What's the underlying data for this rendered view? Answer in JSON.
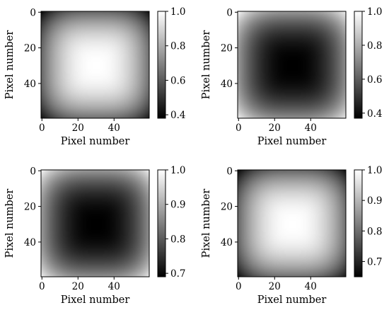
{
  "chart_data": [
    {
      "type": "heatmap",
      "colormap": "gray",
      "grid": false,
      "xlabel": "Pixel number",
      "ylabel": "Pixel number",
      "size": [
        60,
        60
      ],
      "pattern": "center-bright",
      "center": [
        30,
        30
      ],
      "vmin": 0.38,
      "vmax": 1.0,
      "center_value": 1.0,
      "corner_value": 0.38,
      "xticks": [
        "0",
        "20",
        "40"
      ],
      "yticks": [
        "0",
        "20",
        "40"
      ],
      "colorbar_ticks": [
        "0.4",
        "0.6",
        "0.8",
        "1.0"
      ]
    },
    {
      "type": "heatmap",
      "colormap": "gray",
      "grid": false,
      "xlabel": "Pixel number",
      "ylabel": "Pixel number",
      "size": [
        60,
        60
      ],
      "pattern": "center-dark",
      "center": [
        30,
        30
      ],
      "vmin": 0.37,
      "vmax": 1.0,
      "center_value": 0.37,
      "corner_value": 1.0,
      "xticks": [
        "0",
        "20",
        "40"
      ],
      "yticks": [
        "0",
        "20",
        "40"
      ],
      "colorbar_ticks": [
        "0.4",
        "0.6",
        "0.8",
        "1.0"
      ]
    },
    {
      "type": "heatmap",
      "colormap": "gray",
      "grid": false,
      "xlabel": "Pixel number",
      "ylabel": "Pixel number",
      "size": [
        60,
        60
      ],
      "pattern": "center-dark",
      "center": [
        30,
        30
      ],
      "vmin": 0.69,
      "vmax": 1.0,
      "center_value": 0.69,
      "corner_value": 1.0,
      "xticks": [
        "0",
        "20",
        "40"
      ],
      "yticks": [
        "0",
        "20",
        "40"
      ],
      "colorbar_ticks": [
        "0.7",
        "0.8",
        "0.9",
        "1.0"
      ]
    },
    {
      "type": "heatmap",
      "colormap": "gray",
      "grid": false,
      "xlabel": "Pixel number",
      "ylabel": "Pixel number",
      "size": [
        60,
        60
      ],
      "pattern": "center-bright",
      "center": [
        30,
        30
      ],
      "vmin": 0.65,
      "vmax": 1.0,
      "center_value": 1.0,
      "corner_value": 0.65,
      "xticks": [
        "0",
        "20",
        "40"
      ],
      "yticks": [
        "0",
        "20",
        "40"
      ],
      "colorbar_ticks": [
        "0.7",
        "0.8",
        "0.9",
        "1.0"
      ]
    }
  ]
}
